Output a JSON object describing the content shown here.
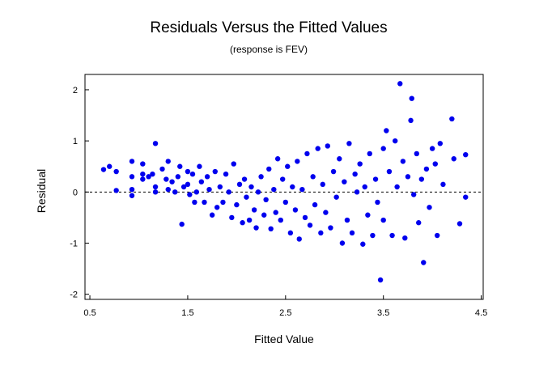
{
  "chart_data": {
    "type": "scatter",
    "title": "Residuals Versus the Fitted Values",
    "subtitle": "(response is FEV)",
    "xlabel": "Fitted Value",
    "ylabel": "Residual",
    "xlim": [
      0.45,
      4.52
    ],
    "ylim": [
      -2.1,
      2.3
    ],
    "x_ticks": [
      {
        "value": 0.5,
        "label": "0.5"
      },
      {
        "value": 1.5,
        "label": "1.5"
      },
      {
        "value": 2.5,
        "label": "2.5"
      },
      {
        "value": 3.5,
        "label": "3.5"
      },
      {
        "value": 4.5,
        "label": "4.5"
      }
    ],
    "y_ticks": [
      {
        "value": -2,
        "label": "-2"
      },
      {
        "value": -1,
        "label": "-1"
      },
      {
        "value": 0,
        "label": "0"
      },
      {
        "value": 1,
        "label": "1"
      },
      {
        "value": 2,
        "label": "2"
      }
    ],
    "reference_line_y": 0,
    "grid": false,
    "marker_color": "#0000ee",
    "series": [
      {
        "name": "Residuals",
        "points": [
          [
            0.64,
            0.44
          ],
          [
            0.7,
            0.5
          ],
          [
            0.77,
            0.4
          ],
          [
            0.77,
            0.03
          ],
          [
            0.93,
            0.6
          ],
          [
            0.93,
            0.3
          ],
          [
            0.93,
            0.05
          ],
          [
            0.93,
            -0.07
          ],
          [
            1.04,
            0.55
          ],
          [
            1.04,
            0.35
          ],
          [
            1.04,
            0.25
          ],
          [
            1.1,
            0.3
          ],
          [
            1.14,
            0.35
          ],
          [
            1.17,
            0.95
          ],
          [
            1.17,
            0.1
          ],
          [
            1.17,
            0.0
          ],
          [
            1.24,
            0.45
          ],
          [
            1.28,
            0.25
          ],
          [
            1.3,
            0.6
          ],
          [
            1.3,
            0.05
          ],
          [
            1.34,
            0.2
          ],
          [
            1.37,
            0.0
          ],
          [
            1.4,
            0.3
          ],
          [
            1.42,
            0.5
          ],
          [
            1.44,
            -0.63
          ],
          [
            1.46,
            0.1
          ],
          [
            1.5,
            0.4
          ],
          [
            1.5,
            0.15
          ],
          [
            1.52,
            -0.05
          ],
          [
            1.55,
            0.35
          ],
          [
            1.57,
            -0.2
          ],
          [
            1.59,
            0.0
          ],
          [
            1.62,
            0.5
          ],
          [
            1.64,
            0.2
          ],
          [
            1.67,
            -0.2
          ],
          [
            1.7,
            0.3
          ],
          [
            1.72,
            0.05
          ],
          [
            1.75,
            -0.45
          ],
          [
            1.78,
            0.4
          ],
          [
            1.8,
            -0.3
          ],
          [
            1.83,
            0.1
          ],
          [
            1.86,
            -0.2
          ],
          [
            1.89,
            0.35
          ],
          [
            1.92,
            0.0
          ],
          [
            1.95,
            -0.5
          ],
          [
            1.97,
            0.55
          ],
          [
            2.0,
            -0.25
          ],
          [
            2.03,
            0.15
          ],
          [
            2.06,
            -0.6
          ],
          [
            2.08,
            0.25
          ],
          [
            2.1,
            -0.1
          ],
          [
            2.13,
            -0.55
          ],
          [
            2.15,
            0.1
          ],
          [
            2.18,
            -0.35
          ],
          [
            2.2,
            -0.7
          ],
          [
            2.22,
            0.0
          ],
          [
            2.25,
            0.3
          ],
          [
            2.28,
            -0.45
          ],
          [
            2.3,
            -0.15
          ],
          [
            2.33,
            0.45
          ],
          [
            2.35,
            -0.72
          ],
          [
            2.38,
            0.05
          ],
          [
            2.4,
            -0.4
          ],
          [
            2.42,
            0.65
          ],
          [
            2.45,
            -0.55
          ],
          [
            2.47,
            0.25
          ],
          [
            2.5,
            -0.2
          ],
          [
            2.52,
            0.5
          ],
          [
            2.55,
            -0.8
          ],
          [
            2.57,
            0.1
          ],
          [
            2.6,
            -0.35
          ],
          [
            2.62,
            0.6
          ],
          [
            2.64,
            -0.92
          ],
          [
            2.67,
            0.05
          ],
          [
            2.7,
            -0.5
          ],
          [
            2.72,
            0.75
          ],
          [
            2.75,
            -0.65
          ],
          [
            2.78,
            0.3
          ],
          [
            2.8,
            -0.25
          ],
          [
            2.83,
            0.85
          ],
          [
            2.86,
            -0.8
          ],
          [
            2.88,
            0.15
          ],
          [
            2.91,
            -0.4
          ],
          [
            2.93,
            0.9
          ],
          [
            2.96,
            -0.7
          ],
          [
            2.99,
            0.4
          ],
          [
            3.02,
            -0.1
          ],
          [
            3.05,
            0.65
          ],
          [
            3.08,
            -1.0
          ],
          [
            3.1,
            0.2
          ],
          [
            3.13,
            -0.55
          ],
          [
            3.15,
            0.95
          ],
          [
            3.18,
            -0.8
          ],
          [
            3.21,
            0.35
          ],
          [
            3.23,
            0.0
          ],
          [
            3.26,
            0.55
          ],
          [
            3.29,
            -1.02
          ],
          [
            3.31,
            0.1
          ],
          [
            3.34,
            -0.45
          ],
          [
            3.36,
            0.75
          ],
          [
            3.39,
            -0.85
          ],
          [
            3.42,
            0.25
          ],
          [
            3.44,
            -0.2
          ],
          [
            3.47,
            -1.72
          ],
          [
            3.5,
            0.85
          ],
          [
            3.5,
            -0.55
          ],
          [
            3.53,
            1.2
          ],
          [
            3.56,
            0.4
          ],
          [
            3.59,
            -0.85
          ],
          [
            3.62,
            1.0
          ],
          [
            3.64,
            0.1
          ],
          [
            3.67,
            2.12
          ],
          [
            3.7,
            0.6
          ],
          [
            3.72,
            -0.9
          ],
          [
            3.75,
            0.3
          ],
          [
            3.78,
            1.4
          ],
          [
            3.79,
            1.83
          ],
          [
            3.81,
            -0.05
          ],
          [
            3.84,
            0.75
          ],
          [
            3.86,
            -0.6
          ],
          [
            3.89,
            0.25
          ],
          [
            3.91,
            -1.38
          ],
          [
            3.94,
            0.45
          ],
          [
            3.97,
            -0.3
          ],
          [
            4.0,
            0.85
          ],
          [
            4.03,
            0.55
          ],
          [
            4.05,
            -0.85
          ],
          [
            4.08,
            0.95
          ],
          [
            4.11,
            0.15
          ],
          [
            4.2,
            1.43
          ],
          [
            4.22,
            0.65
          ],
          [
            4.28,
            -0.62
          ],
          [
            4.34,
            -0.1
          ],
          [
            4.34,
            0.73
          ]
        ]
      }
    ]
  }
}
